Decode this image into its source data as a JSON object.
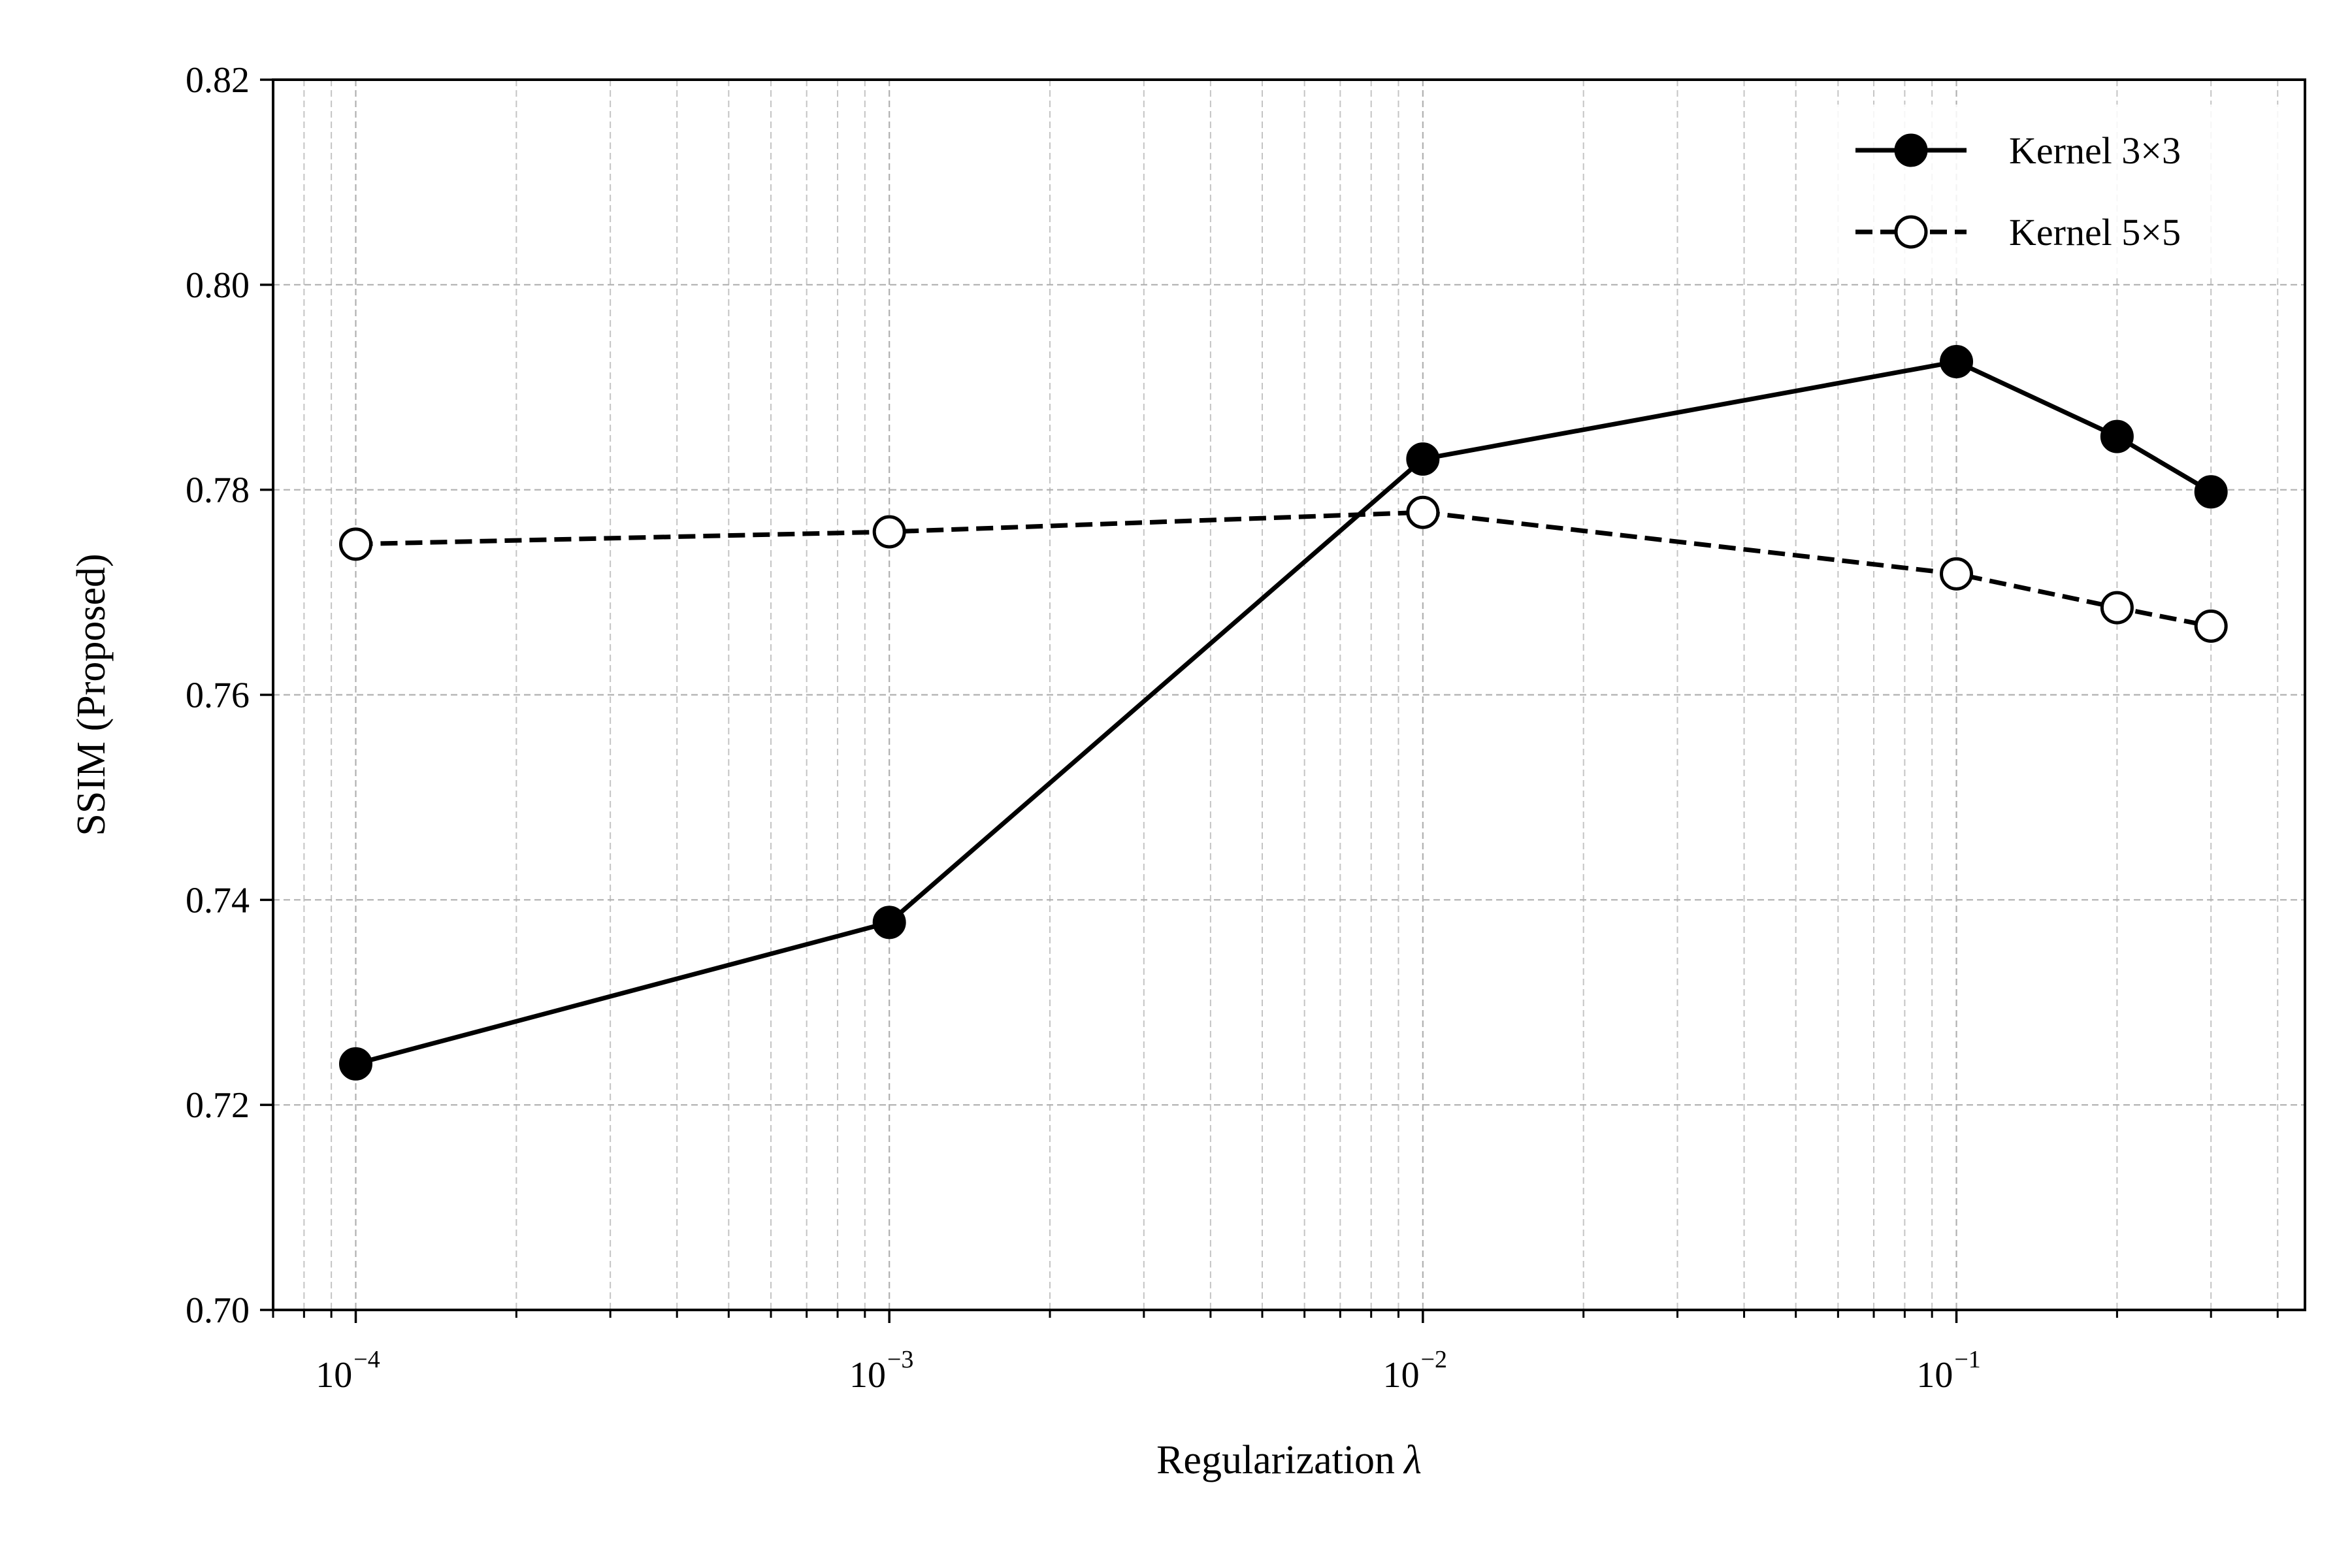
{
  "chart_data": {
    "type": "line",
    "xlabel": "Regularization",
    "xlabel_symbol": "λ",
    "ylabel": "SSIM (Proposed)",
    "xscale": "log",
    "xlim": [
      7e-05,
      0.45
    ],
    "ylim": [
      0.7,
      0.82
    ],
    "grid": true,
    "legend_position": "top-right",
    "x_ticks": [
      {
        "value": 0.0001,
        "base": "10",
        "exponent": "−4"
      },
      {
        "value": 0.001,
        "base": "10",
        "exponent": "−3"
      },
      {
        "value": 0.01,
        "base": "10",
        "exponent": "−2"
      },
      {
        "value": 0.1,
        "base": "10",
        "exponent": "−1"
      }
    ],
    "y_ticks": [
      0.7,
      0.72,
      0.74,
      0.76,
      0.78,
      0.8,
      0.82
    ],
    "y_tick_labels": [
      "0.70",
      "0.72",
      "0.74",
      "0.76",
      "0.78",
      "0.80",
      "0.82"
    ],
    "x": [
      0.0001,
      0.001,
      0.01,
      0.1,
      0.2,
      0.3
    ],
    "series": [
      {
        "name": "Kernel 3×3",
        "linestyle": "solid",
        "marker": "filled-circle",
        "color": "#000000",
        "values": [
          0.724,
          0.7378,
          0.783,
          0.7925,
          0.7852,
          0.7798
        ]
      },
      {
        "name": "Kernel 5×5",
        "linestyle": "dashed",
        "marker": "open-circle",
        "color": "#000000",
        "values": [
          0.7747,
          0.7759,
          0.7778,
          0.7718,
          0.7685,
          0.7667
        ]
      }
    ]
  }
}
